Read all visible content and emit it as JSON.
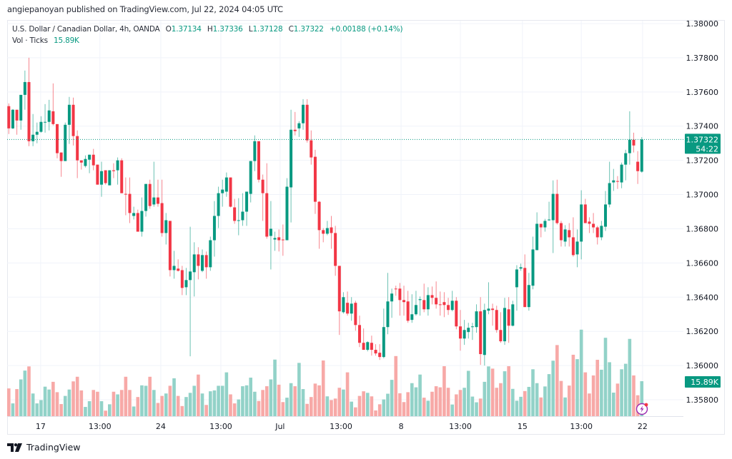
{
  "publisher_line": "angiepanoyan published on TradingView.com, Jul 22, 2024 04:05 UTC",
  "legend": {
    "symbol": "U.S. Dollar / Canadian Dollar, 4h, OANDA",
    "o_label": "O",
    "o_value": "1.37134",
    "h_label": "H",
    "h_value": "1.37336",
    "l_label": "L",
    "l_value": "1.37128",
    "c_label": "C",
    "c_value": "1.37322",
    "change": "+0.00188 (+0.14%)",
    "vol_label": "Vol · Ticks",
    "vol_value": "15.89K"
  },
  "last_price": {
    "value": "1.37322",
    "countdown": "54:22"
  },
  "last_volume": "15.89K",
  "logo_text": "TradingView",
  "colors": {
    "up": "#089981",
    "down": "#f23645",
    "vol_up": "#92d2c8",
    "vol_down": "#f7a9a7",
    "grid": "#f0f3fa",
    "accent": "#9c27b0"
  },
  "chart_data": {
    "type": "candlestick",
    "title": "U.S. Dollar / Canadian Dollar, 4h, OANDA",
    "ylim": [
      1.3568,
      1.3812
    ],
    "y_ticks": [
      "1.38000",
      "1.37800",
      "1.37600",
      "1.37400",
      "1.37200",
      "1.37000",
      "1.36800",
      "1.36600",
      "1.36400",
      "1.36200",
      "1.36000",
      "1.35800"
    ],
    "x_ticks": [
      {
        "label": "17",
        "index": 7.9
      },
      {
        "label": "13:00",
        "index": 22.6
      },
      {
        "label": "24",
        "index": 37.7
      },
      {
        "label": "13:00",
        "index": 52.6
      },
      {
        "label": "Jul",
        "index": 67.3
      },
      {
        "label": "13:00",
        "index": 82.4
      },
      {
        "label": "8",
        "index": 97.3
      },
      {
        "label": "13:00",
        "index": 112
      },
      {
        "label": "15",
        "index": 127.4
      },
      {
        "label": "13:00",
        "index": 142
      },
      {
        "label": "22",
        "index": 157.2
      }
    ],
    "ohlc_fields": [
      "open",
      "high",
      "low",
      "close"
    ],
    "candles": [
      [
        1.37517,
        1.37533,
        1.37354,
        1.37387
      ],
      [
        1.37387,
        1.375,
        1.37383,
        1.37496
      ],
      [
        1.37496,
        1.37496,
        1.3735,
        1.37433
      ],
      [
        1.37433,
        1.37583,
        1.37379,
        1.37583
      ],
      [
        1.37583,
        1.37725,
        1.37496,
        1.37658
      ],
      [
        1.37658,
        1.378,
        1.37283,
        1.37312
      ],
      [
        1.37312,
        1.37471,
        1.37283,
        1.3735
      ],
      [
        1.3735,
        1.37421,
        1.373,
        1.37367
      ],
      [
        1.37367,
        1.37458,
        1.37362,
        1.37425
      ],
      [
        1.37421,
        1.37529,
        1.37362,
        1.37425
      ],
      [
        1.37425,
        1.37554,
        1.37375,
        1.37492
      ],
      [
        1.37487,
        1.3765,
        1.37404,
        1.37412
      ],
      [
        1.37412,
        1.37412,
        1.37212,
        1.37242
      ],
      [
        1.37246,
        1.37246,
        1.37104,
        1.37196
      ],
      [
        1.37196,
        1.37421,
        1.37196,
        1.37408
      ],
      [
        1.37408,
        1.37571,
        1.37296,
        1.37525
      ],
      [
        1.37525,
        1.37567,
        1.37287,
        1.37342
      ],
      [
        1.37342,
        1.37375,
        1.37096,
        1.372
      ],
      [
        1.372,
        1.372,
        1.37146,
        1.37187
      ],
      [
        1.37167,
        1.37229,
        1.37158,
        1.37208
      ],
      [
        1.37204,
        1.37233,
        1.37125,
        1.37233
      ],
      [
        1.37233,
        1.37267,
        1.37142,
        1.37171
      ],
      [
        1.37175,
        1.37175,
        1.37058,
        1.37058
      ],
      [
        1.37058,
        1.37192,
        1.36987,
        1.37137
      ],
      [
        1.37142,
        1.37142,
        1.37058,
        1.37067
      ],
      [
        1.37054,
        1.37142,
        1.37054,
        1.37142
      ],
      [
        1.37142,
        1.37183,
        1.37096,
        1.37137
      ],
      [
        1.37142,
        1.37217,
        1.37058,
        1.372
      ],
      [
        1.372,
        1.37212,
        1.37008,
        1.37008
      ],
      [
        1.37004,
        1.371,
        1.36879,
        1.37
      ],
      [
        1.37004,
        1.371,
        1.36833,
        1.36892
      ],
      [
        1.36875,
        1.36929,
        1.36854,
        1.36892
      ],
      [
        1.36892,
        1.36912,
        1.36783,
        1.36783
      ],
      [
        1.36783,
        1.36983,
        1.36754,
        1.36904
      ],
      [
        1.36904,
        1.37062,
        1.36871,
        1.37062
      ],
      [
        1.37062,
        1.37087,
        1.36917,
        1.36933
      ],
      [
        1.36942,
        1.37192,
        1.36929,
        1.36983
      ],
      [
        1.36983,
        1.37087,
        1.36929,
        1.36946
      ],
      [
        1.3695,
        1.37087,
        1.36754,
        1.36775
      ],
      [
        1.36775,
        1.36892,
        1.36708,
        1.3685
      ],
      [
        1.36846,
        1.36846,
        1.36521,
        1.36558
      ],
      [
        1.36558,
        1.36671,
        1.36508,
        1.36583
      ],
      [
        1.36567,
        1.36621,
        1.3655,
        1.36554
      ],
      [
        1.36558,
        1.36583,
        1.36412,
        1.36454
      ],
      [
        1.36458,
        1.36571,
        1.36412,
        1.365
      ],
      [
        1.365,
        1.36812,
        1.36054,
        1.3655
      ],
      [
        1.36546,
        1.36721,
        1.36404,
        1.3665
      ],
      [
        1.3665,
        1.36692,
        1.36504,
        1.36583
      ],
      [
        1.36554,
        1.36679,
        1.36546,
        1.36646
      ],
      [
        1.36646,
        1.36667,
        1.36508,
        1.36575
      ],
      [
        1.36575,
        1.36754,
        1.36554,
        1.36733
      ],
      [
        1.36733,
        1.36962,
        1.36637,
        1.36875
      ],
      [
        1.36875,
        1.37046,
        1.36804,
        1.37008
      ],
      [
        1.37008,
        1.37087,
        1.36929,
        1.37029
      ],
      [
        1.37017,
        1.37129,
        1.36987,
        1.371
      ],
      [
        1.371,
        1.371,
        1.36925,
        1.36929
      ],
      [
        1.36925,
        1.36975,
        1.36829,
        1.36846
      ],
      [
        1.36846,
        1.36979,
        1.36762,
        1.3685
      ],
      [
        1.3685,
        1.37008,
        1.36817,
        1.369
      ],
      [
        1.369,
        1.37017,
        1.36817,
        1.37017
      ],
      [
        1.37004,
        1.37196,
        1.36954,
        1.37196
      ],
      [
        1.37196,
        1.37346,
        1.37137,
        1.37312
      ],
      [
        1.37312,
        1.37312,
        1.37071,
        1.37087
      ],
      [
        1.37087,
        1.37117,
        1.36846,
        1.37008
      ],
      [
        1.37008,
        1.37183,
        1.36742,
        1.36754
      ],
      [
        1.36758,
        1.36962,
        1.36562,
        1.368
      ],
      [
        1.36737,
        1.36783,
        1.36671,
        1.36746
      ],
      [
        1.3675,
        1.36796,
        1.36667,
        1.36733
      ],
      [
        1.36737,
        1.36825,
        1.36642,
        1.36733
      ],
      [
        1.36733,
        1.37096,
        1.36733,
        1.37046
      ],
      [
        1.37042,
        1.37496,
        1.36837,
        1.37379
      ],
      [
        1.37379,
        1.37483,
        1.37346,
        1.37371
      ],
      [
        1.37387,
        1.37429,
        1.37337,
        1.37417
      ],
      [
        1.37417,
        1.37558,
        1.37379,
        1.37525
      ],
      [
        1.37525,
        1.37558,
        1.37304,
        1.37317
      ],
      [
        1.37317,
        1.37375,
        1.37175,
        1.37217
      ],
      [
        1.37221,
        1.37262,
        1.36887,
        1.36958
      ],
      [
        1.36958,
        1.36962,
        1.36683,
        1.36792
      ],
      [
        1.36792,
        1.36804,
        1.36721,
        1.36771
      ],
      [
        1.36771,
        1.36846,
        1.36762,
        1.36804
      ],
      [
        1.36808,
        1.36875,
        1.36683,
        1.36775
      ],
      [
        1.36775,
        1.36817,
        1.36525,
        1.36583
      ],
      [
        1.36583,
        1.36583,
        1.36179,
        1.36317
      ],
      [
        1.36312,
        1.36429,
        1.36304,
        1.364
      ],
      [
        1.36367,
        1.36433,
        1.36292,
        1.36304
      ],
      [
        1.36304,
        1.364,
        1.36262,
        1.36362
      ],
      [
        1.36367,
        1.36379,
        1.36204,
        1.36237
      ],
      [
        1.36237,
        1.36292,
        1.36108,
        1.36133
      ],
      [
        1.36133,
        1.36217,
        1.36092,
        1.36092
      ],
      [
        1.36092,
        1.36142,
        1.36083,
        1.36137
      ],
      [
        1.36133,
        1.36175,
        1.36058,
        1.36092
      ],
      [
        1.36092,
        1.36125,
        1.36058,
        1.36071
      ],
      [
        1.36075,
        1.36125,
        1.36033,
        1.3605
      ],
      [
        1.3605,
        1.36333,
        1.36042,
        1.36225
      ],
      [
        1.36225,
        1.36542,
        1.36183,
        1.36375
      ],
      [
        1.36375,
        1.3645,
        1.36279,
        1.36421
      ],
      [
        1.3645,
        1.36467,
        1.36408,
        1.36446
      ],
      [
        1.3645,
        1.36483,
        1.36292,
        1.36383
      ],
      [
        1.36383,
        1.36467,
        1.36292,
        1.36371
      ],
      [
        1.36375,
        1.36437,
        1.3625,
        1.36262
      ],
      [
        1.36267,
        1.36417,
        1.3625,
        1.363
      ],
      [
        1.363,
        1.36437,
        1.36292,
        1.36354
      ],
      [
        1.36383,
        1.36404,
        1.36292,
        1.36388
      ],
      [
        1.36383,
        1.36479,
        1.36312,
        1.36329
      ],
      [
        1.36329,
        1.36458,
        1.36292,
        1.36412
      ],
      [
        1.36412,
        1.36462,
        1.36358,
        1.36396
      ],
      [
        1.36396,
        1.36492,
        1.36333,
        1.36358
      ],
      [
        1.36358,
        1.36433,
        1.36292,
        1.36354
      ],
      [
        1.36371,
        1.36429,
        1.36283,
        1.36354
      ],
      [
        1.36354,
        1.36396,
        1.36296,
        1.36325
      ],
      [
        1.36325,
        1.36437,
        1.36317,
        1.36379
      ],
      [
        1.36379,
        1.364,
        1.36212,
        1.36229
      ],
      [
        1.36229,
        1.36325,
        1.36087,
        1.36158
      ],
      [
        1.36158,
        1.36267,
        1.36121,
        1.36208
      ],
      [
        1.36196,
        1.3625,
        1.36158,
        1.36221
      ],
      [
        1.36225,
        1.3625,
        1.3615,
        1.36229
      ],
      [
        1.36225,
        1.36358,
        1.36192,
        1.36317
      ],
      [
        1.36317,
        1.364,
        1.36004,
        1.36067
      ],
      [
        1.36062,
        1.36362,
        1.36,
        1.36325
      ],
      [
        1.36321,
        1.36487,
        1.363,
        1.36333
      ],
      [
        1.36333,
        1.36362,
        1.36233,
        1.36325
      ],
      [
        1.36325,
        1.3635,
        1.36192,
        1.36208
      ],
      [
        1.36208,
        1.36312,
        1.36133,
        1.36142
      ],
      [
        1.36142,
        1.36396,
        1.36121,
        1.36337
      ],
      [
        1.36329,
        1.364,
        1.36133,
        1.36233
      ],
      [
        1.36233,
        1.36379,
        1.36229,
        1.36358
      ],
      [
        1.36458,
        1.36587,
        1.36321,
        1.36562
      ],
      [
        1.36567,
        1.36596,
        1.36554,
        1.36575
      ],
      [
        1.36571,
        1.3665,
        1.36342,
        1.36342
      ],
      [
        1.36342,
        1.36542,
        1.36321,
        1.36471
      ],
      [
        1.36467,
        1.36754,
        1.36446,
        1.36679
      ],
      [
        1.36675,
        1.36896,
        1.36675,
        1.36829
      ],
      [
        1.36829,
        1.36829,
        1.3675,
        1.36808
      ],
      [
        1.36808,
        1.36858,
        1.36783,
        1.36846
      ],
      [
        1.3685,
        1.36958,
        1.36846,
        1.36854
      ],
      [
        1.3685,
        1.37083,
        1.36658,
        1.37004
      ],
      [
        1.37004,
        1.37087,
        1.36825,
        1.36833
      ],
      [
        1.36833,
        1.36846,
        1.36696,
        1.36733
      ],
      [
        1.36725,
        1.36821,
        1.36696,
        1.36796
      ],
      [
        1.36792,
        1.36833,
        1.36696,
        1.3675
      ],
      [
        1.3675,
        1.36867,
        1.36637,
        1.36646
      ],
      [
        1.3665,
        1.36796,
        1.36575,
        1.36725
      ],
      [
        1.36725,
        1.37025,
        1.36621,
        1.36942
      ],
      [
        1.36942,
        1.36975,
        1.36833,
        1.36833
      ],
      [
        1.36842,
        1.36867,
        1.36775,
        1.36829
      ],
      [
        1.36829,
        1.36892,
        1.36775,
        1.36808
      ],
      [
        1.36808,
        1.36817,
        1.36708,
        1.3675
      ],
      [
        1.3675,
        1.36846,
        1.36733,
        1.36817
      ],
      [
        1.36812,
        1.37021,
        1.36787,
        1.36942
      ],
      [
        1.36942,
        1.37192,
        1.36925,
        1.37067
      ],
      [
        1.37071,
        1.3715,
        1.37021,
        1.37083
      ],
      [
        1.37079,
        1.37108,
        1.37033,
        1.37075
      ],
      [
        1.37071,
        1.37187,
        1.37037,
        1.37175
      ],
      [
        1.37175,
        1.37262,
        1.37083,
        1.37242
      ],
      [
        1.37242,
        1.37487,
        1.37175,
        1.37321
      ],
      [
        1.37321,
        1.37362,
        1.37246,
        1.37287
      ],
      [
        1.37192,
        1.37254,
        1.37062,
        1.37137
      ],
      [
        1.37134,
        1.37336,
        1.37128,
        1.37322
      ]
    ],
    "volume_unit": "K ticks",
    "volume_max": 41.5,
    "volumes": [
      12.6,
      5.8,
      12.3,
      16.7,
      20.7,
      22.6,
      10.3,
      5.8,
      7.3,
      13.4,
      12.1,
      15.6,
      10.9,
      5.5,
      9.2,
      12.1,
      15.8,
      17.9,
      11.7,
      4.2,
      6.8,
      11.9,
      11.1,
      6.8,
      2.5,
      5.4,
      11.1,
      9.9,
      11.9,
      17.9,
      11.9,
      4.4,
      8.7,
      14.0,
      13.8,
      17.9,
      11.9,
      6.0,
      9.2,
      10.3,
      13.8,
      17.2,
      9.2,
      4.6,
      8.7,
      10.6,
      13.8,
      18.9,
      10.3,
      5.1,
      11.3,
      11.7,
      13.8,
      13.8,
      19.9,
      9.9,
      5.8,
      7.6,
      13.6,
      14.0,
      17.5,
      11.1,
      6.9,
      11.9,
      13.6,
      16.7,
      25.7,
      14.3,
      6.4,
      8.4,
      15.0,
      13.6,
      24.2,
      12.3,
      5.6,
      8.7,
      14.8,
      14.0,
      25.3,
      9.0,
      7.3,
      8.0,
      12.9,
      12.1,
      19.9,
      6.6,
      4.0,
      9.2,
      11.3,
      10.6,
      9.0,
      2.6,
      5.4,
      7.6,
      10.2,
      16.5,
      27.3,
      10.4,
      6.4,
      10.9,
      15.0,
      13.1,
      18.9,
      8.4,
      7.0,
      11.1,
      13.6,
      13.1,
      22.7,
      12.9,
      5.3,
      9.9,
      11.9,
      12.9,
      20.6,
      8.9,
      6.3,
      8.0,
      15.6,
      22.6,
      21.6,
      12.9,
      15.0,
      20.4,
      22.7,
      12.4,
      7.0,
      8.8,
      11.4,
      13.3,
      21.3,
      15.0,
      8.5,
      13.5,
      19.1,
      25.2,
      32.3,
      16.0,
      8.5,
      13.9,
      27.9,
      25.9,
      39.3,
      19.9,
      10.3,
      18.5,
      25.6,
      21.1,
      35.6,
      24.5,
      10.7,
      14.8,
      21.3,
      23.8,
      35.1,
      18.5,
      9.5,
      15.89
    ],
    "last_close": 1.37322,
    "grid": true
  }
}
